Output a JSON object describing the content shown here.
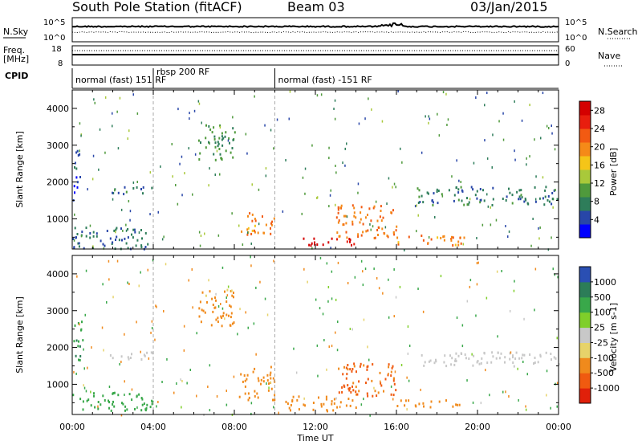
{
  "header": {
    "station": "South Pole Station (fitACF)",
    "beam": "Beam 03",
    "date": "03/Jan/2015"
  },
  "top_panels": {
    "nsky_label": "N.Sky",
    "nsearch_label": "N.Search",
    "nsky_ticks": [
      "10^5",
      "10^0"
    ],
    "nsearch_ticks": [
      "10^5",
      "10^0"
    ],
    "freq_label_line1": "Freq.",
    "freq_label_line2": "[MHz]",
    "freq_ticks": [
      "18",
      "8"
    ],
    "nave_label": "Nave",
    "nave_ticks": [
      "60",
      "0"
    ],
    "cpid_label": "CPID",
    "cpid_segments": [
      {
        "label": "normal (fast) 151 RF",
        "start": 0,
        "end": 4
      },
      {
        "label": "rbsp 200 RF",
        "start": 4,
        "end": 10
      },
      {
        "label": "normal (fast) -151 RF",
        "start": 10,
        "end": 24
      }
    ]
  },
  "chart_data": [
    {
      "type": "heatmap",
      "title": "",
      "xlabel": "Time UT",
      "ylabel": "Slant Range [km]",
      "xlim": [
        0,
        24
      ],
      "ylim": [
        180,
        4500
      ],
      "x_ticks": [
        0,
        4,
        8,
        12,
        16,
        20,
        24
      ],
      "x_tick_labels": [
        "00:00",
        "04:00",
        "08:00",
        "12:00",
        "16:00",
        "20:00",
        "00:00"
      ],
      "y_ticks": [
        1000,
        2000,
        3000,
        4000
      ],
      "colorbar": {
        "label": "Power [dB]",
        "min": 0,
        "max": 30,
        "ticks": [
          4,
          8,
          12,
          16,
          20,
          24,
          28
        ],
        "colors": [
          "#0000ff",
          "#2846a8",
          "#2e7d5a",
          "#4f9a3c",
          "#a9c93a",
          "#f5c518",
          "#f58a18",
          "#f25a12",
          "#e81e0e",
          "#d40000"
        ]
      },
      "regions": [
        {
          "t": [
            0.0,
            4.0
          ],
          "r": [
            200,
            800
          ],
          "value": 6
        },
        {
          "t": [
            0.0,
            0.4
          ],
          "r": [
            1500,
            2900
          ],
          "value": 5
        },
        {
          "t": [
            1.5,
            4.0
          ],
          "r": [
            1700,
            1900
          ],
          "value": 7
        },
        {
          "t": [
            6.2,
            8.0
          ],
          "r": [
            2600,
            3600
          ],
          "value": 9
        },
        {
          "t": [
            8.2,
            10.0
          ],
          "r": [
            600,
            1200
          ],
          "value": 20
        },
        {
          "t": [
            10.5,
            14.0
          ],
          "r": [
            300,
            500
          ],
          "value": 29
        },
        {
          "t": [
            13.0,
            16.0
          ],
          "r": [
            500,
            1400
          ],
          "value": 21
        },
        {
          "t": [
            16.0,
            19.5
          ],
          "r": [
            300,
            600
          ],
          "value": 20
        },
        {
          "t": [
            17.0,
            24.0
          ],
          "r": [
            1400,
            1900
          ],
          "value": 7
        }
      ]
    },
    {
      "type": "heatmap",
      "title": "",
      "xlabel": "Time UT",
      "ylabel": "Slant Range [km]",
      "xlim": [
        0,
        24
      ],
      "ylim": [
        180,
        4500
      ],
      "x_ticks": [
        0,
        4,
        8,
        12,
        16,
        20,
        24
      ],
      "x_tick_labels": [
        "00:00",
        "04:00",
        "08:00",
        "12:00",
        "16:00",
        "20:00",
        "00:00"
      ],
      "y_ticks": [
        1000,
        2000,
        3000,
        4000
      ],
      "colorbar": {
        "label": "Velocity [m s-1]",
        "ticks": [
          1000,
          500,
          100,
          25,
          -25,
          -100,
          -500,
          -1000
        ],
        "colors": [
          "#2a4fb3",
          "#2c7d58",
          "#39a84a",
          "#7fcf2a",
          "#c8c8c8",
          "#e7d36a",
          "#f08a1c",
          "#f05a10",
          "#e0200a"
        ]
      },
      "regions": [
        {
          "t": [
            0.0,
            0.5
          ],
          "r": [
            1600,
            2800
          ],
          "value": 400
        },
        {
          "t": [
            0.0,
            4.0
          ],
          "r": [
            300,
            800
          ],
          "value": 200
        },
        {
          "t": [
            1.5,
            4.0
          ],
          "r": [
            1700,
            1900
          ],
          "value": 0
        },
        {
          "t": [
            6.2,
            8.0
          ],
          "r": [
            2600,
            3600
          ],
          "value": -150
        },
        {
          "t": [
            8.2,
            10.0
          ],
          "r": [
            600,
            1500
          ],
          "value": -200
        },
        {
          "t": [
            10.5,
            14.0
          ],
          "r": [
            300,
            700
          ],
          "value": -250
        },
        {
          "t": [
            13.0,
            16.0
          ],
          "r": [
            700,
            1600
          ],
          "value": -600
        },
        {
          "t": [
            16.0,
            19.5
          ],
          "r": [
            400,
            600
          ],
          "value": -200
        },
        {
          "t": [
            17.0,
            24.0
          ],
          "r": [
            1500,
            1900
          ],
          "value": 0
        }
      ]
    }
  ]
}
